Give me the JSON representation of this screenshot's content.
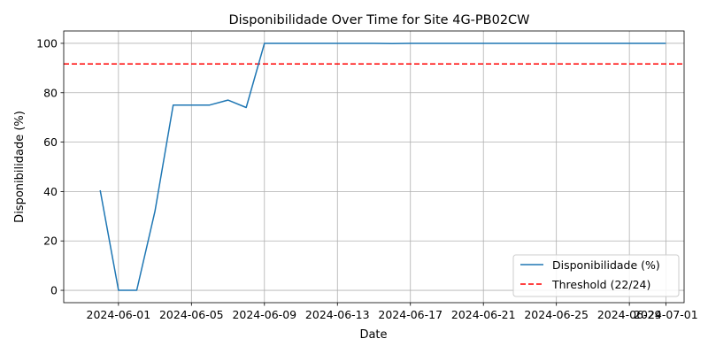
{
  "chart_data": {
    "type": "line",
    "title": "Disponibilidade Over Time for Site 4G-PB02CW",
    "xlabel": "Date",
    "ylabel": "Disponibilidade (%)",
    "grid": true,
    "legend_position": "lower-right",
    "xlim": [
      "2024-05-29",
      "2024-07-02"
    ],
    "ylim": [
      -5,
      105
    ],
    "x_ticks": [
      "2024-06-01",
      "2024-06-05",
      "2024-06-09",
      "2024-06-13",
      "2024-06-17",
      "2024-06-21",
      "2024-06-25",
      "2024-06-29",
      "2024-07-01"
    ],
    "y_ticks": [
      0,
      20,
      40,
      60,
      80,
      100
    ],
    "series": [
      {
        "name": "Disponibilidade (%)",
        "color": "#1f77b4",
        "x": [
          "2024-05-31",
          "2024-06-01",
          "2024-06-02",
          "2024-06-03",
          "2024-06-04",
          "2024-06-05",
          "2024-06-06",
          "2024-06-07",
          "2024-06-08",
          "2024-06-09",
          "2024-06-10",
          "2024-06-11",
          "2024-06-12",
          "2024-06-13",
          "2024-06-14",
          "2024-06-15",
          "2024-06-16",
          "2024-06-17",
          "2024-06-18",
          "2024-06-19",
          "2024-06-20",
          "2024-06-21",
          "2024-06-22",
          "2024-06-23",
          "2024-06-24",
          "2024-06-25",
          "2024-06-26",
          "2024-06-27",
          "2024-06-28",
          "2024-06-29",
          "2024-06-30",
          "2024-07-01"
        ],
        "values": [
          40.5,
          0,
          0,
          32,
          75,
          75,
          75,
          77,
          74,
          100,
          100,
          100,
          100,
          100,
          100,
          100,
          99.9,
          100,
          100,
          100,
          100,
          100,
          100,
          100,
          100,
          100,
          100,
          100,
          100,
          100,
          100,
          100
        ]
      }
    ],
    "threshold": {
      "name": "Threshold (22/24)",
      "value": 91.67,
      "color": "#ff0000",
      "style": "dashed"
    }
  }
}
